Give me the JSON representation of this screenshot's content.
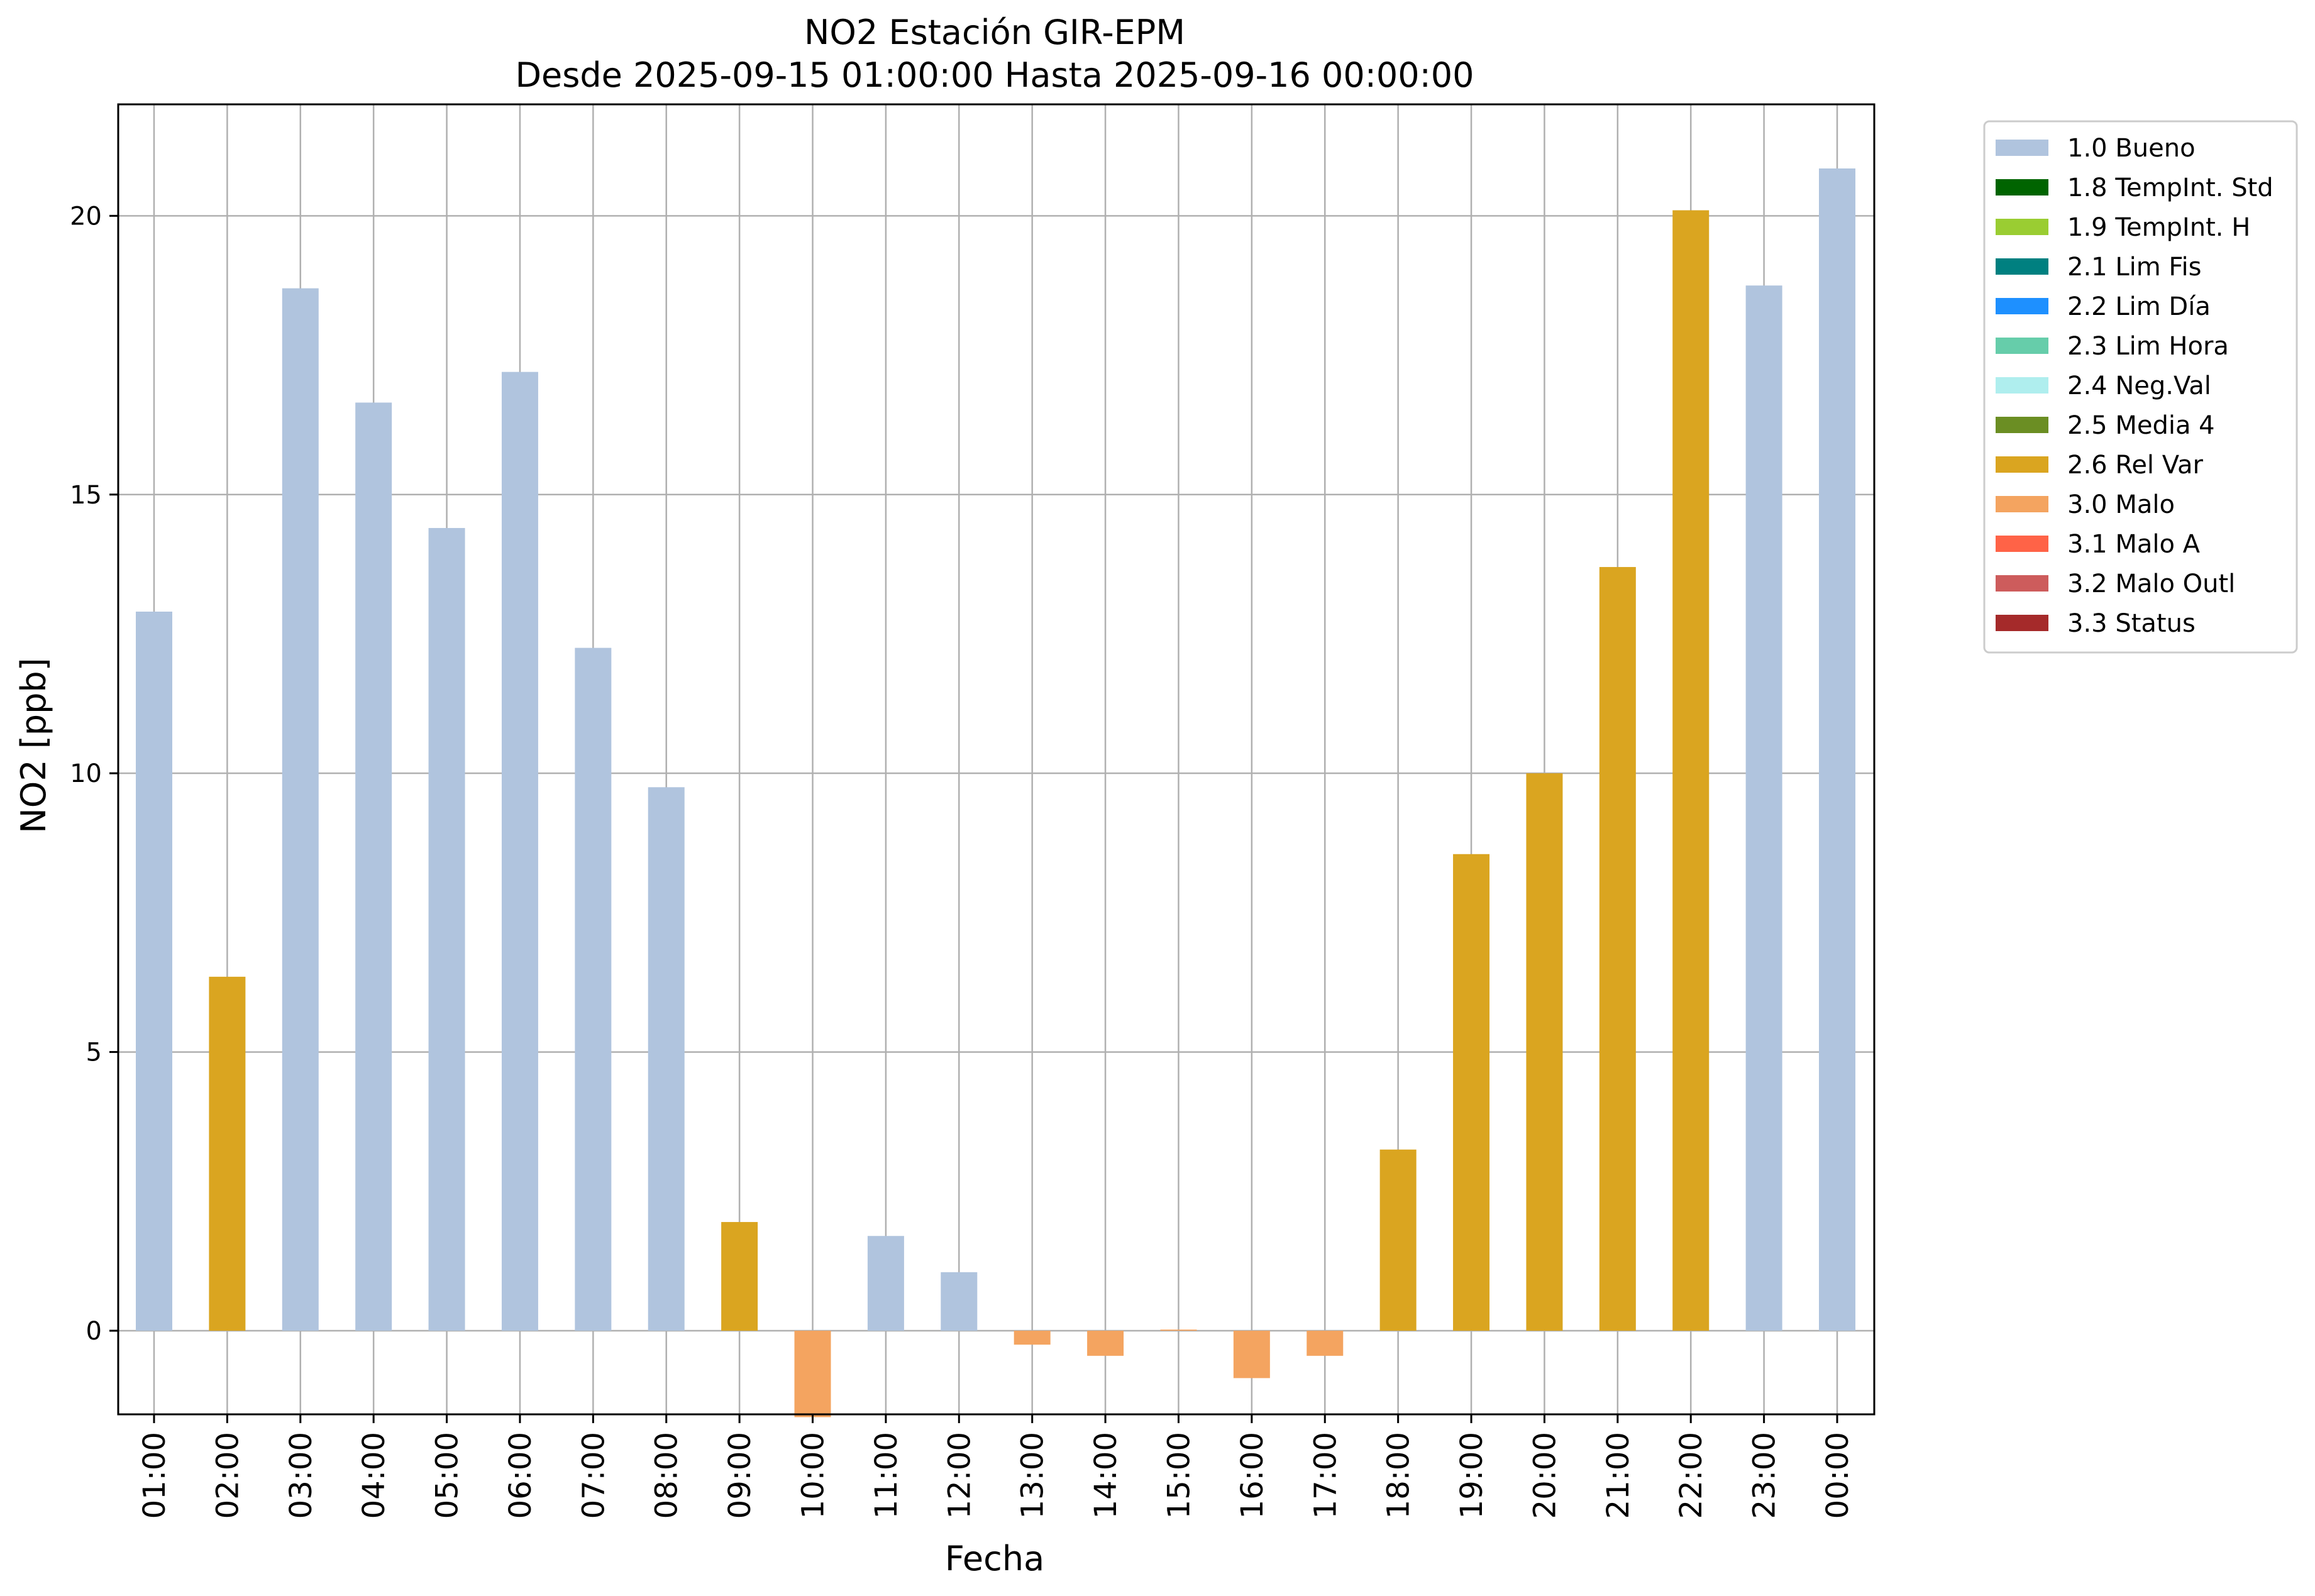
{
  "chart_data": {
    "type": "bar",
    "title": "NO2 Estación GIR-EPM",
    "subtitle": "Desde 2025-09-15 01:00:00 Hasta 2025-09-16 00:00:00",
    "xlabel": "Fecha",
    "ylabel": "NO2 [ppb]",
    "ylim": [
      -1.5,
      22
    ],
    "yticks": [
      0,
      5,
      10,
      15,
      20
    ],
    "grid": true,
    "legend_position": "outside-right",
    "categories": [
      "01:00",
      "02:00",
      "03:00",
      "04:00",
      "05:00",
      "06:00",
      "07:00",
      "08:00",
      "09:00",
      "10:00",
      "11:00",
      "12:00",
      "13:00",
      "14:00",
      "15:00",
      "16:00",
      "17:00",
      "18:00",
      "19:00",
      "20:00",
      "21:00",
      "22:00",
      "23:00",
      "00:00"
    ],
    "values": [
      12.9,
      6.35,
      18.7,
      16.65,
      14.4,
      17.2,
      12.25,
      9.75,
      1.95,
      -1.55,
      1.7,
      1.05,
      -0.25,
      -0.45,
      0.02,
      -0.85,
      -0.45,
      3.25,
      8.55,
      10.0,
      13.7,
      20.1,
      18.75,
      20.85
    ],
    "flags": [
      "1.0 Bueno",
      "2.6 Rel Var",
      "1.0 Bueno",
      "1.0 Bueno",
      "1.0 Bueno",
      "1.0 Bueno",
      "1.0 Bueno",
      "1.0 Bueno",
      "2.6 Rel Var",
      "3.0 Malo",
      "1.0 Bueno",
      "1.0 Bueno",
      "3.0 Malo",
      "3.0 Malo",
      "3.0 Malo",
      "3.0 Malo",
      "3.0 Malo",
      "2.6 Rel Var",
      "2.6 Rel Var",
      "2.6 Rel Var",
      "2.6 Rel Var",
      "2.6 Rel Var",
      "1.0 Bueno",
      "1.0 Bueno"
    ],
    "legend": [
      {
        "label": "1.0 Bueno",
        "color": "#b0c4de"
      },
      {
        "label": "1.8 TempInt. Std",
        "color": "#006400"
      },
      {
        "label": "1.9 TempInt. H",
        "color": "#9acd32"
      },
      {
        "label": "2.1 Lim Fis",
        "color": "#008080"
      },
      {
        "label": "2.2 Lim Día",
        "color": "#1e90ff"
      },
      {
        "label": "2.3 Lim Hora",
        "color": "#66cdaa"
      },
      {
        "label": "2.4 Neg.Val",
        "color": "#afeeee"
      },
      {
        "label": "2.5 Media 4",
        "color": "#6b8e23"
      },
      {
        "label": "2.6 Rel Var",
        "color": "#daa520"
      },
      {
        "label": "3.0 Malo",
        "color": "#f4a460"
      },
      {
        "label": "3.1 Malo A",
        "color": "#ff6347"
      },
      {
        "label": "3.2 Malo Outl",
        "color": "#cd5c5c"
      },
      {
        "label": "3.3 Status",
        "color": "#a52a2a"
      }
    ]
  }
}
